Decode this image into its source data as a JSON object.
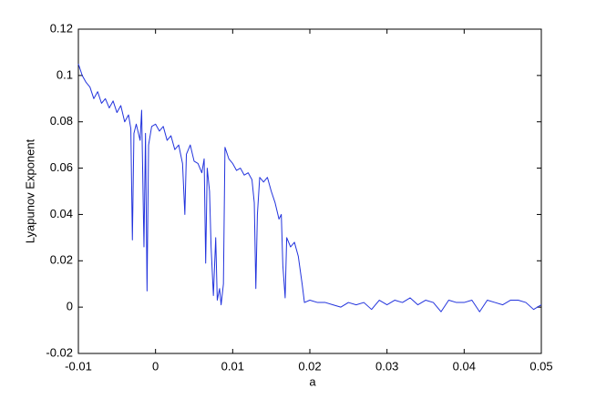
{
  "chart_data": {
    "type": "line",
    "xlabel": "a",
    "ylabel": "Lyapunov Exponent",
    "x": [
      -0.01,
      -0.0095,
      -0.009,
      -0.0085,
      -0.008,
      -0.0075,
      -0.007,
      -0.0065,
      -0.006,
      -0.0055,
      -0.005,
      -0.0045,
      -0.004,
      -0.0035,
      -0.0032,
      -0.003,
      -0.0028,
      -0.0025,
      -0.002,
      -0.0018,
      -0.0015,
      -0.0013,
      -0.0011,
      -0.0009,
      -0.0005,
      0,
      0.0005,
      0.001,
      0.0015,
      0.002,
      0.0025,
      0.003,
      0.0035,
      0.0038,
      0.004,
      0.0045,
      0.005,
      0.0055,
      0.006,
      0.0063,
      0.0065,
      0.0067,
      0.007,
      0.0072,
      0.0075,
      0.0078,
      0.008,
      0.0083,
      0.0085,
      0.0088,
      0.009,
      0.0095,
      0.01,
      0.0105,
      0.011,
      0.0115,
      0.012,
      0.0125,
      0.0128,
      0.013,
      0.0132,
      0.0135,
      0.014,
      0.0145,
      0.015,
      0.0155,
      0.016,
      0.0163,
      0.0165,
      0.0168,
      0.017,
      0.0175,
      0.018,
      0.0185,
      0.019,
      0.0193,
      0.02,
      0.021,
      0.022,
      0.023,
      0.024,
      0.025,
      0.026,
      0.027,
      0.028,
      0.029,
      0.03,
      0.031,
      0.032,
      0.033,
      0.034,
      0.035,
      0.036,
      0.037,
      0.038,
      0.039,
      0.04,
      0.041,
      0.042,
      0.043,
      0.044,
      0.045,
      0.046,
      0.047,
      0.048,
      0.049,
      0.05
    ],
    "series": [
      {
        "color": "#2233dd",
        "values": [
          0.105,
          0.1,
          0.097,
          0.095,
          0.09,
          0.093,
          0.088,
          0.09,
          0.086,
          0.089,
          0.084,
          0.087,
          0.08,
          0.083,
          0.077,
          0.029,
          0.075,
          0.079,
          0.072,
          0.085,
          0.026,
          0.075,
          0.007,
          0.07,
          0.078,
          0.079,
          0.076,
          0.078,
          0.072,
          0.074,
          0.068,
          0.07,
          0.062,
          0.04,
          0.066,
          0.07,
          0.063,
          0.062,
          0.058,
          0.064,
          0.019,
          0.06,
          0.05,
          0.026,
          0.005,
          0.03,
          0.003,
          0.008,
          0.001,
          0.01,
          0.069,
          0.064,
          0.062,
          0.059,
          0.06,
          0.057,
          0.058,
          0.055,
          0.045,
          0.008,
          0.04,
          0.056,
          0.054,
          0.056,
          0.05,
          0.045,
          0.038,
          0.04,
          0.018,
          0.004,
          0.03,
          0.026,
          0.028,
          0.022,
          0.01,
          0.002,
          0.003,
          0.002,
          0.002,
          0.001,
          0,
          0.002,
          0.001,
          0.002,
          -0.001,
          0.003,
          0.001,
          0.003,
          0.002,
          0.004,
          0.001,
          0.003,
          0.002,
          -0.002,
          0.003,
          0.002,
          0.002,
          0.003,
          -0.002,
          0.003,
          0.002,
          0.001,
          0.003,
          0.003,
          0.002,
          -0.001,
          0.001
        ]
      }
    ],
    "xlim": [
      -0.01,
      0.05
    ],
    "xticks": [
      -0.01,
      0,
      0.01,
      0.02,
      0.03,
      0.04,
      0.05
    ],
    "ylim": [
      -0.02,
      0.12
    ],
    "yticks": [
      -0.02,
      0,
      0.02,
      0.04,
      0.06,
      0.08,
      0.1,
      0.12
    ]
  }
}
